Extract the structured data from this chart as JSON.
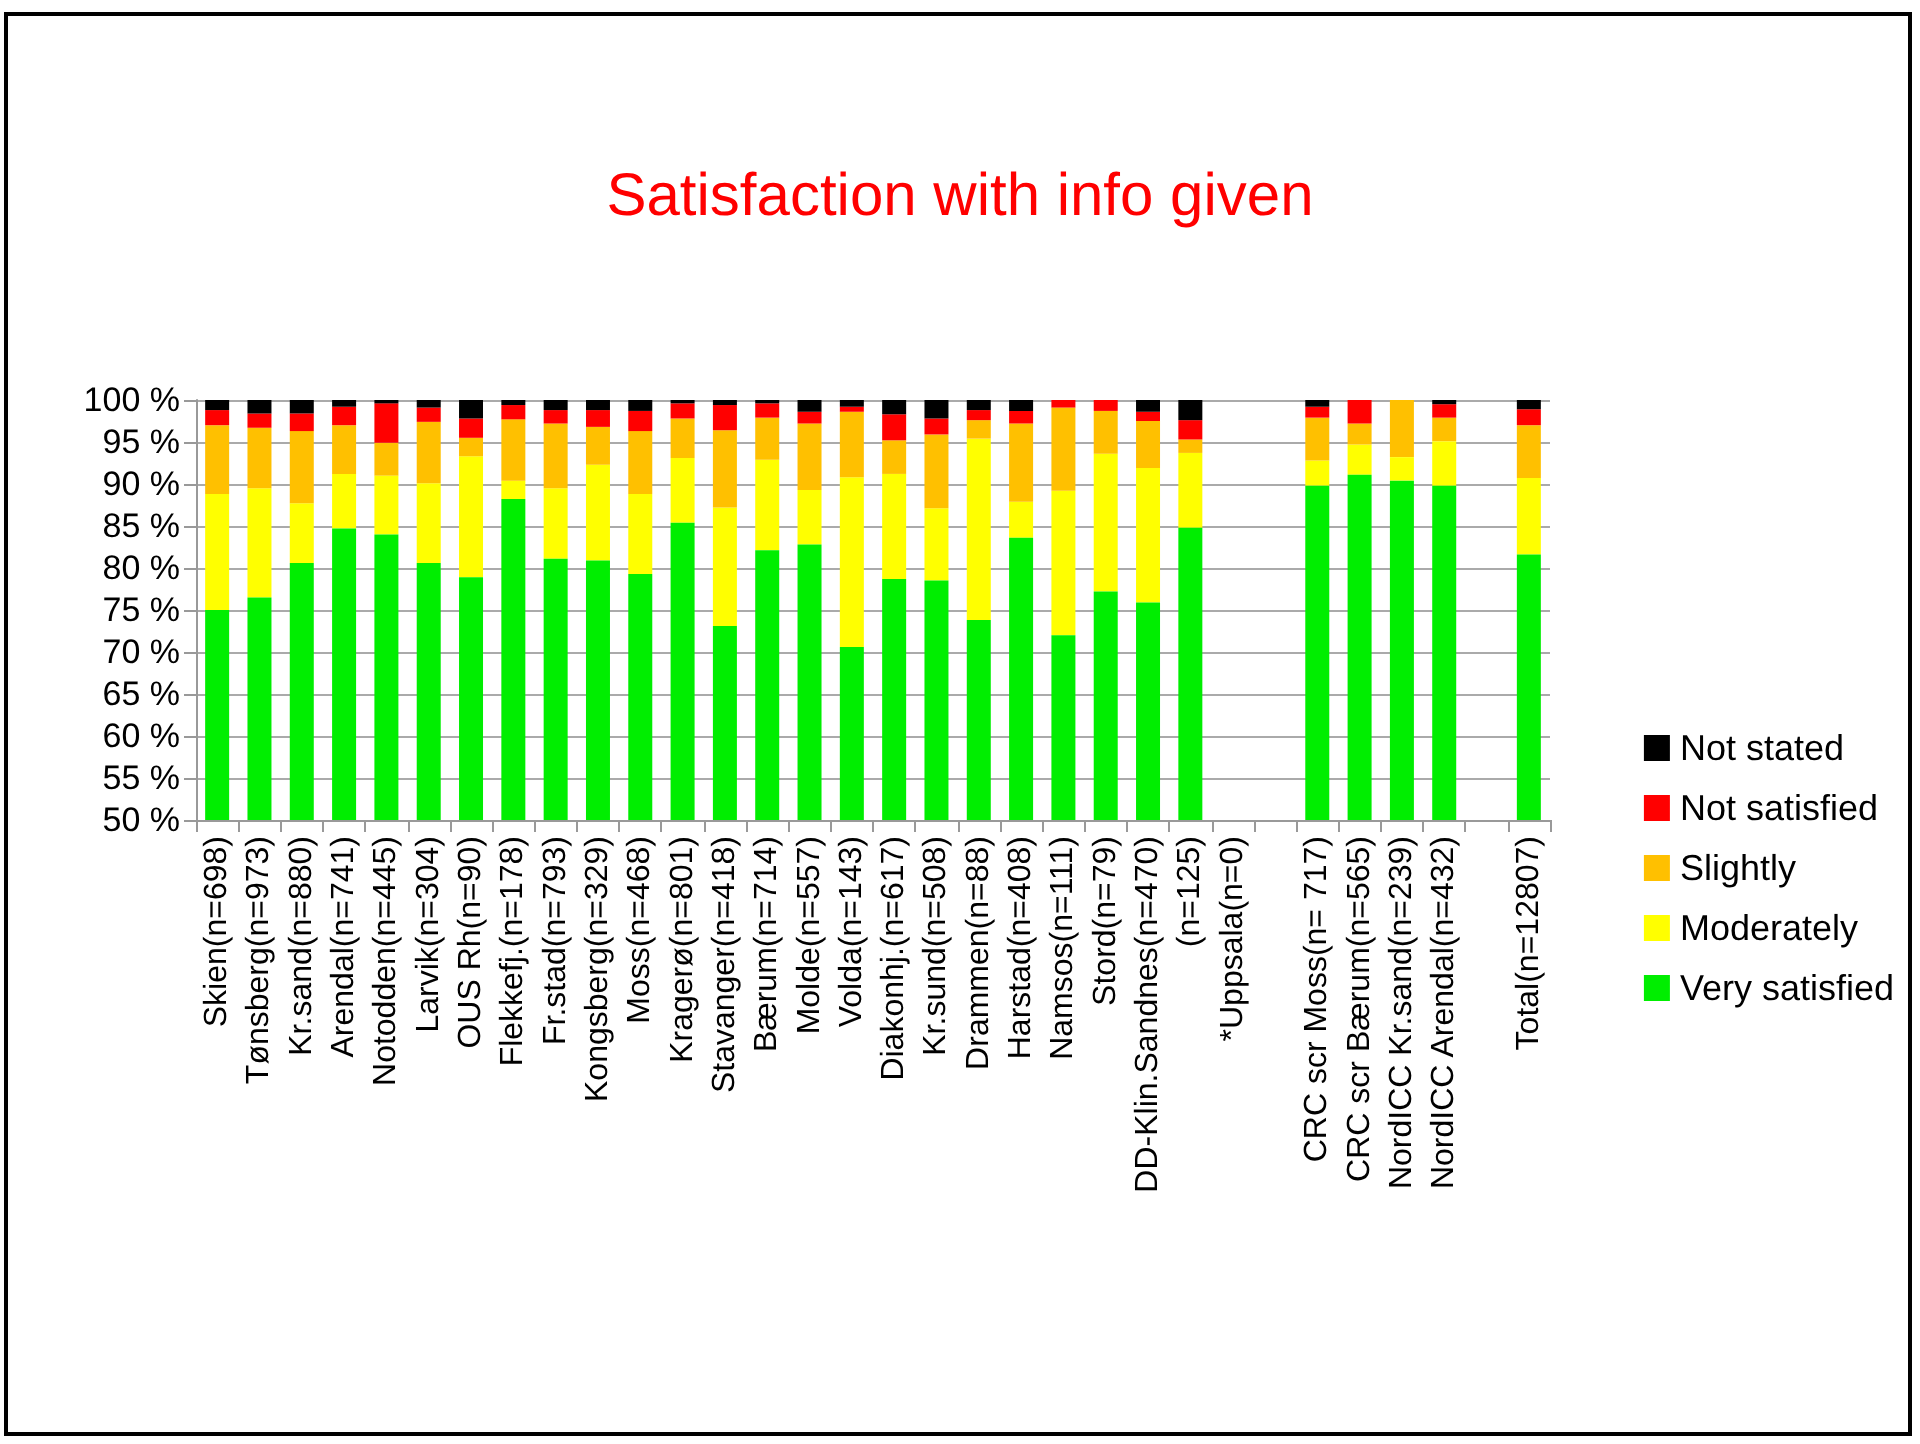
{
  "chart_data": {
    "type": "bar",
    "title": "Satisfaction with info given",
    "stacked": true,
    "categories": [
      "Skien(n=698)",
      "Tønsberg(n=973)",
      "Kr.sand(n=880)",
      "Arendal(n=741)",
      "Notodden(n=445)",
      "Larvik(n=304)",
      "OUS Rh(n=90)",
      "Flekkefj.(n=178)",
      "Fr.stad(n=793)",
      "Kongsberg(n=329)",
      "Moss(n=468)",
      "Kragerø(n=801)",
      "Stavanger(n=418)",
      "Bærum(n=714)",
      "Molde(n=557)",
      "Volda(n=143)",
      "Diakonhj.(n=617)",
      "Kr.sund(n=508)",
      "Drammen(n=88)",
      "Harstad(n=408)",
      "Namsos(n=111)",
      "Stord(n=79)",
      "DD-Klin.Sandnes(n=470)",
      "(n=125)",
      "*Uppsala(n=0)",
      null,
      "CRC scr Moss(n= 717)",
      "CRC scr Bærum(n=565)",
      "NordICC Kr.sand(n=239)",
      "NordICC Arendal(n=432)",
      null,
      "Total(n=12807)"
    ],
    "series": [
      {
        "name": "Very satisfied",
        "color": "#00ee00",
        "values": [
          75.0,
          76.5,
          80.6,
          84.7,
          84.0,
          80.6,
          78.9,
          88.2,
          81.1,
          80.9,
          79.3,
          85.4,
          73.1,
          82.1,
          82.8,
          70.6,
          78.7,
          78.5,
          73.8,
          83.6,
          72.0,
          77.2,
          75.9,
          84.8,
          null,
          null,
          89.8,
          91.1,
          90.4,
          89.8,
          null,
          81.6
        ]
      },
      {
        "name": "Moderately",
        "color": "#ffff00",
        "base": [
          75.0,
          76.5,
          80.6,
          84.7,
          84.0,
          80.6,
          78.9,
          88.2,
          81.1,
          80.9,
          79.3,
          85.4,
          73.1,
          82.1,
          82.8,
          70.6,
          78.7,
          78.5,
          73.8,
          83.6,
          72.0,
          77.2,
          75.9,
          84.8,
          null,
          null,
          89.8,
          91.1,
          90.4,
          89.8,
          null,
          81.6
        ],
        "values": [
          13.8,
          13.0,
          7.1,
          6.5,
          7.0,
          9.5,
          14.4,
          2.2,
          8.4,
          11.4,
          9.5,
          7.7,
          14.1,
          10.8,
          6.5,
          20.2,
          12.5,
          8.6,
          21.6,
          4.3,
          17.2,
          16.4,
          16.0,
          8.9,
          null,
          null,
          3.0,
          3.6,
          2.8,
          5.3,
          null,
          9.1
        ]
      },
      {
        "name": "Slightly",
        "color": "#ffc000",
        "base": [
          88.8,
          89.5,
          87.7,
          91.2,
          91.0,
          90.1,
          93.3,
          90.4,
          89.5,
          92.3,
          88.8,
          93.1,
          87.2,
          92.9,
          89.3,
          90.8,
          91.2,
          87.1,
          95.4,
          87.9,
          89.2,
          93.6,
          91.9,
          93.7,
          null,
          null,
          92.8,
          94.7,
          93.2,
          95.1,
          null,
          90.7
        ],
        "values": [
          8.2,
          7.2,
          8.6,
          5.8,
          3.9,
          7.3,
          2.2,
          7.3,
          7.7,
          4.5,
          7.5,
          4.7,
          9.2,
          5.0,
          7.9,
          7.8,
          4.0,
          8.8,
          2.2,
          9.3,
          9.9,
          5.1,
          5.6,
          1.6,
          null,
          null,
          5.1,
          2.5,
          6.8,
          2.8,
          null,
          6.3
        ]
      },
      {
        "name": "Not satisfied",
        "color": "#ff0000",
        "base": [
          97.0,
          96.7,
          96.3,
          97.0,
          94.9,
          97.4,
          95.5,
          97.7,
          97.2,
          96.8,
          96.3,
          97.8,
          96.4,
          97.9,
          97.2,
          98.6,
          95.2,
          95.9,
          97.6,
          97.2,
          99.1,
          98.7,
          97.5,
          95.3,
          null,
          null,
          97.9,
          97.2,
          null,
          97.9,
          null,
          97.0
        ],
        "values": [
          1.8,
          1.7,
          2.1,
          2.2,
          4.7,
          1.7,
          2.3,
          1.7,
          1.6,
          2.0,
          2.4,
          1.8,
          3.0,
          1.7,
          1.4,
          0.6,
          3.1,
          1.9,
          1.2,
          1.5,
          0.9,
          1.3,
          1.1,
          2.3,
          null,
          null,
          1.3,
          2.8,
          null,
          1.6,
          null,
          1.9
        ]
      },
      {
        "name": "Not stated",
        "color": "#000000",
        "base": [
          98.8,
          98.4,
          98.4,
          99.2,
          99.6,
          99.1,
          97.8,
          99.4,
          98.8,
          98.8,
          98.7,
          99.6,
          99.4,
          99.6,
          98.6,
          99.2,
          98.3,
          97.8,
          98.8,
          98.7,
          null,
          null,
          98.6,
          97.6,
          null,
          null,
          99.2,
          null,
          null,
          99.5,
          null,
          98.9
        ],
        "values": [
          1.2,
          1.6,
          1.6,
          0.8,
          0.4,
          0.9,
          2.2,
          0.6,
          1.2,
          1.2,
          1.3,
          0.4,
          0.6,
          0.4,
          1.4,
          0.8,
          1.7,
          2.2,
          1.2,
          1.3,
          null,
          null,
          1.4,
          2.4,
          null,
          null,
          0.8,
          null,
          null,
          0.5,
          null,
          1.1
        ]
      }
    ],
    "ylim": [
      50,
      100
    ],
    "yticks": [
      {
        "value": 50,
        "label": "50 %"
      },
      {
        "value": 55,
        "label": "55 %"
      },
      {
        "value": 60,
        "label": "60 %"
      },
      {
        "value": 65,
        "label": "65 %"
      },
      {
        "value": 70,
        "label": "70 %"
      },
      {
        "value": 75,
        "label": "75 %"
      },
      {
        "value": 80,
        "label": "80 %"
      },
      {
        "value": 85,
        "label": "85 %"
      },
      {
        "value": 90,
        "label": "90 %"
      },
      {
        "value": 95,
        "label": "95 %"
      },
      {
        "value": 100,
        "label": "100 %"
      }
    ],
    "grid": "y",
    "legend": "right"
  }
}
